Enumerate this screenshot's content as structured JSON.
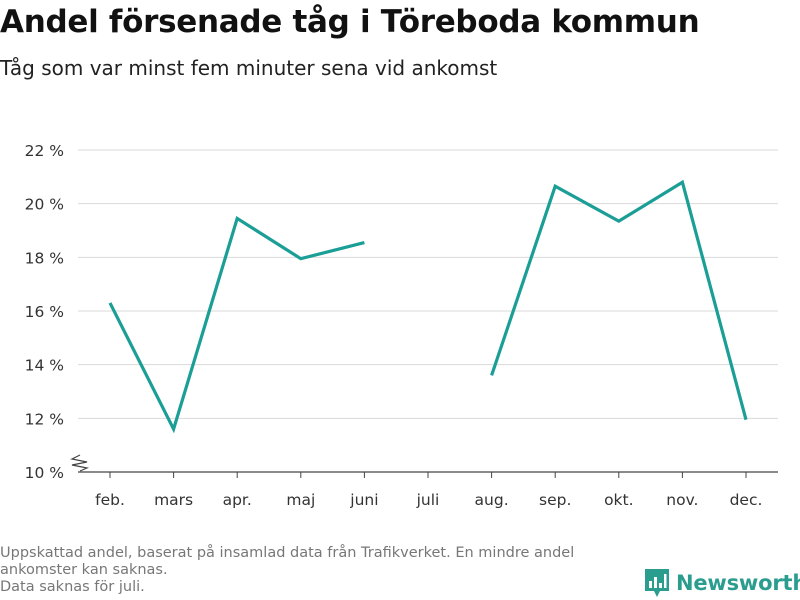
{
  "header": {
    "title": "Andel försenade tåg i Töreboda kommun",
    "subtitle": "Tåg som var minst fem minuter sena vid ankomst"
  },
  "footnote": {
    "lines": [
      "Uppskattad andel, baserat på insamlad data från Trafikverket. En mindre andel",
      "ankomster kan saknas.",
      "Data saknas för juli."
    ]
  },
  "brand": {
    "name": "Newsworthy",
    "icon": "bar-chart-logo-icon",
    "color": "#2a9d8f"
  },
  "chart_data": {
    "type": "line",
    "categories": [
      "feb.",
      "mars",
      "apr.",
      "maj",
      "juni",
      "juli",
      "aug.",
      "sep.",
      "okt.",
      "nov.",
      "dec."
    ],
    "series": [
      {
        "values": [
          16.3,
          11.6,
          19.45,
          17.95,
          18.55,
          null,
          13.6,
          20.65,
          19.35,
          20.8,
          11.95
        ],
        "color": "#1a9e96"
      }
    ],
    "yticks": [
      10,
      12,
      14,
      16,
      18,
      20,
      22
    ],
    "ytick_labels": [
      "10 %",
      "12 %",
      "14 %",
      "16 %",
      "18 %",
      "20 %",
      "22 %"
    ],
    "ylim": [
      10,
      22
    ],
    "y_axis_break": true,
    "grid": true,
    "legend": "none"
  }
}
